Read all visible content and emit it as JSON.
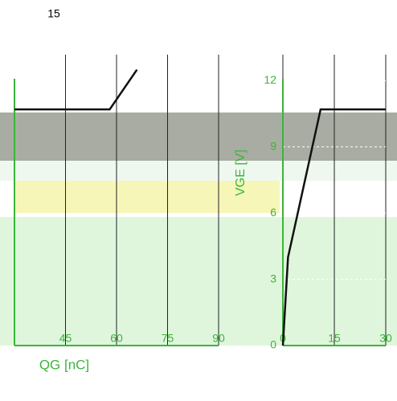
{
  "chart_data": [
    {
      "type": "line",
      "title": "15",
      "x": [
        30,
        58,
        66
      ],
      "series": [
        {
          "color": "#111111",
          "values": [
            10.7,
            10.7,
            12.5
          ]
        }
      ],
      "xlim": [
        30,
        90
      ],
      "xticks": [
        45,
        60,
        75,
        90
      ],
      "ylim": [
        0,
        15
      ],
      "grid": true,
      "xlabel": "QG [nC]"
    },
    {
      "type": "line",
      "x": [
        0,
        1.5,
        11,
        30
      ],
      "series": [
        {
          "color": "#111111",
          "values": [
            0,
            4,
            10.7,
            10.7
          ]
        }
      ],
      "xlim": [
        0,
        30
      ],
      "xticks": [
        0,
        15,
        30
      ],
      "ylim": [
        0,
        15
      ],
      "yticks": [
        0,
        3,
        6,
        9,
        12
      ],
      "grid": true,
      "ylabel": "VGE [V]"
    }
  ]
}
